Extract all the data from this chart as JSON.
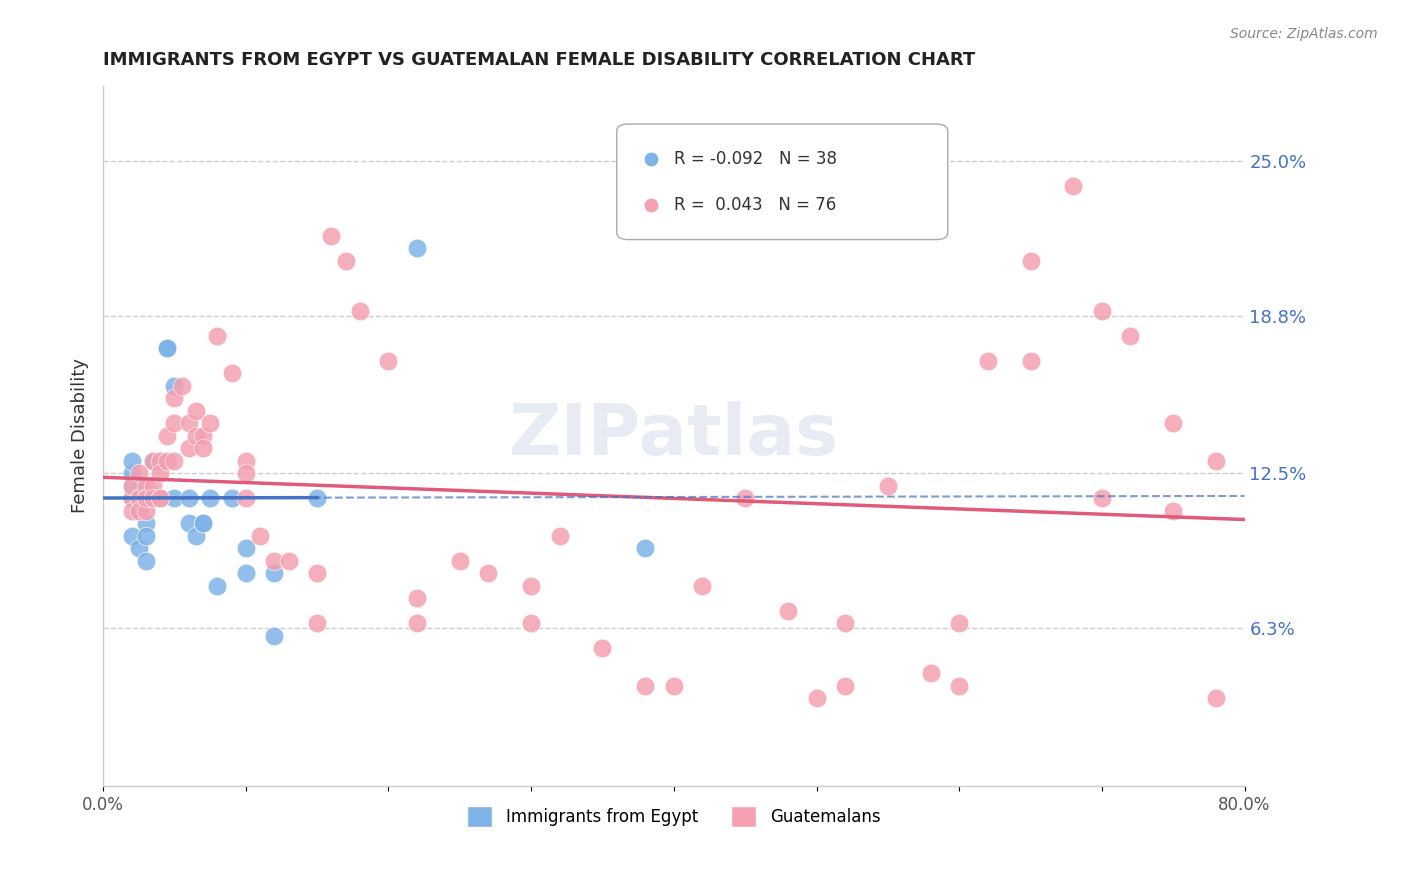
{
  "title": "IMMIGRANTS FROM EGYPT VS GUATEMALAN FEMALE DISABILITY CORRELATION CHART",
  "source": "Source: ZipAtlas.com",
  "ylabel": "Female Disability",
  "ytick_labels": [
    "25.0%",
    "18.8%",
    "12.5%",
    "6.3%"
  ],
  "ytick_values": [
    0.25,
    0.188,
    0.125,
    0.063
  ],
  "xlim": [
    0.0,
    0.8
  ],
  "ylim": [
    0.0,
    0.28
  ],
  "legend": {
    "egypt_R": "-0.092",
    "egypt_N": "38",
    "guatemala_R": "0.043",
    "guatemala_N": "76"
  },
  "watermark": "ZIPatlas",
  "egypt_color": "#7eb3e8",
  "egypt_line_color": "#4472c4",
  "guatemala_color": "#f4a0b0",
  "guatemala_line_color": "#e05a7a",
  "egypt_points_x": [
    0.02,
    0.02,
    0.02,
    0.02,
    0.02,
    0.025,
    0.025,
    0.025,
    0.025,
    0.03,
    0.03,
    0.03,
    0.03,
    0.03,
    0.035,
    0.035,
    0.04,
    0.04,
    0.04,
    0.045,
    0.045,
    0.05,
    0.05,
    0.06,
    0.06,
    0.065,
    0.07,
    0.07,
    0.075,
    0.08,
    0.09,
    0.1,
    0.1,
    0.12,
    0.12,
    0.15,
    0.22,
    0.38
  ],
  "egypt_points_y": [
    0.115,
    0.12,
    0.125,
    0.13,
    0.1,
    0.11,
    0.12,
    0.115,
    0.095,
    0.115,
    0.115,
    0.105,
    0.1,
    0.09,
    0.115,
    0.13,
    0.115,
    0.115,
    0.13,
    0.175,
    0.175,
    0.16,
    0.115,
    0.115,
    0.105,
    0.1,
    0.105,
    0.105,
    0.115,
    0.08,
    0.115,
    0.095,
    0.085,
    0.085,
    0.06,
    0.115,
    0.215,
    0.095
  ],
  "guatemala_points_x": [
    0.02,
    0.02,
    0.02,
    0.025,
    0.025,
    0.025,
    0.025,
    0.03,
    0.03,
    0.03,
    0.03,
    0.035,
    0.035,
    0.035,
    0.04,
    0.04,
    0.04,
    0.04,
    0.045,
    0.045,
    0.05,
    0.05,
    0.05,
    0.055,
    0.06,
    0.06,
    0.065,
    0.065,
    0.07,
    0.07,
    0.075,
    0.08,
    0.09,
    0.1,
    0.1,
    0.1,
    0.11,
    0.12,
    0.13,
    0.15,
    0.15,
    0.16,
    0.17,
    0.18,
    0.2,
    0.22,
    0.22,
    0.25,
    0.27,
    0.3,
    0.3,
    0.32,
    0.35,
    0.38,
    0.4,
    0.42,
    0.45,
    0.48,
    0.5,
    0.52,
    0.55,
    0.58,
    0.6,
    0.62,
    0.65,
    0.68,
    0.7,
    0.72,
    0.75,
    0.78,
    0.52,
    0.6,
    0.65,
    0.7,
    0.75,
    0.78
  ],
  "guatemala_points_y": [
    0.115,
    0.12,
    0.11,
    0.125,
    0.115,
    0.115,
    0.11,
    0.12,
    0.115,
    0.11,
    0.115,
    0.13,
    0.12,
    0.115,
    0.115,
    0.13,
    0.125,
    0.115,
    0.14,
    0.13,
    0.155,
    0.145,
    0.13,
    0.16,
    0.145,
    0.135,
    0.15,
    0.14,
    0.14,
    0.135,
    0.145,
    0.18,
    0.165,
    0.13,
    0.125,
    0.115,
    0.1,
    0.09,
    0.09,
    0.085,
    0.065,
    0.22,
    0.21,
    0.19,
    0.17,
    0.075,
    0.065,
    0.09,
    0.085,
    0.08,
    0.065,
    0.1,
    0.055,
    0.04,
    0.04,
    0.08,
    0.115,
    0.07,
    0.035,
    0.04,
    0.12,
    0.045,
    0.065,
    0.17,
    0.21,
    0.24,
    0.19,
    0.18,
    0.145,
    0.13,
    0.065,
    0.04,
    0.17,
    0.115,
    0.11,
    0.035
  ]
}
